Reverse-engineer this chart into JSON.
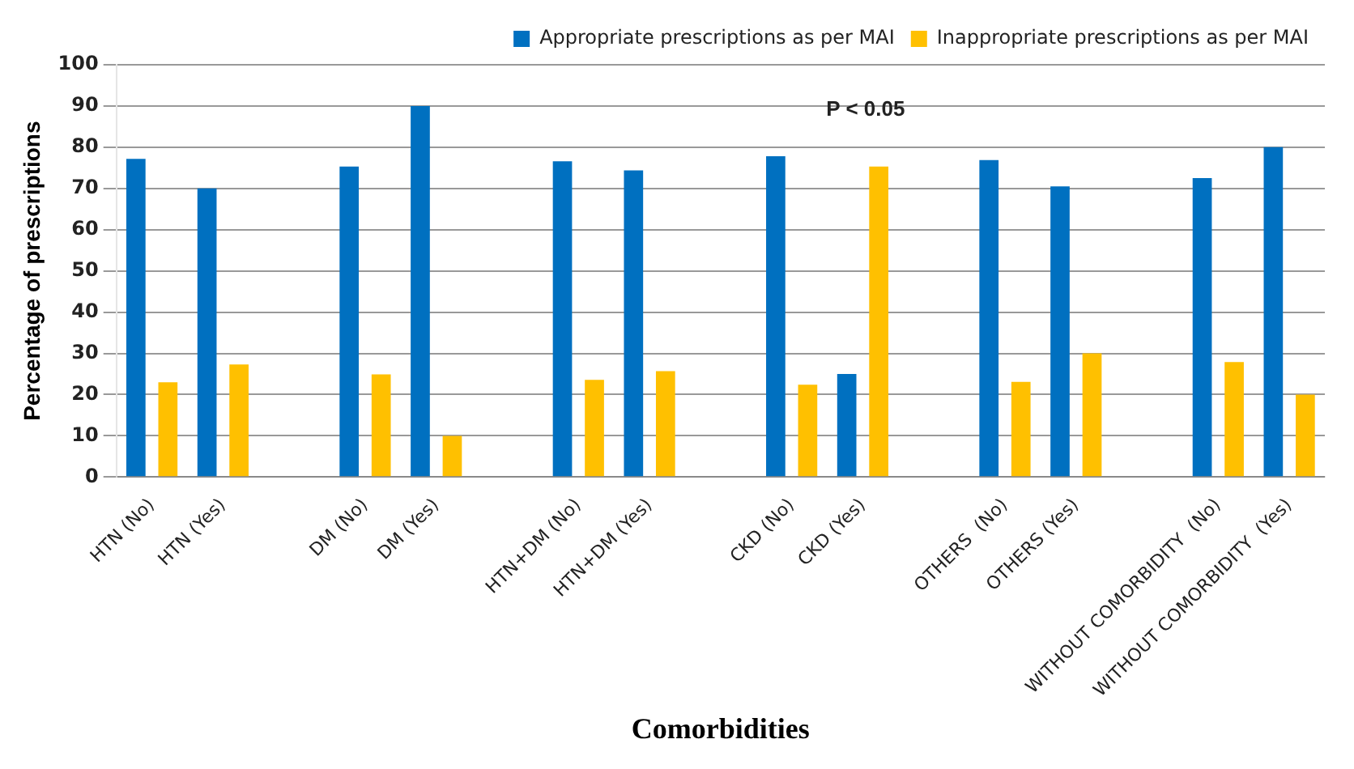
{
  "chart_data": {
    "type": "bar",
    "xlabel": "Comorbidities",
    "ylabel": "Percentage of prescriptions",
    "categories": [
      "HTN (No)",
      "HTN (Yes)",
      null,
      "DM (No)",
      "DM (Yes)",
      null,
      "HTN+DM (No)",
      "HTN+DM (Yes)",
      null,
      "CKD (No)",
      "CKD (Yes)",
      null,
      "OTHERS  (No)",
      "OTHERS (Yes)",
      null,
      "WITHOUT COMORBIDITY  (No)",
      "WITHOUT COMORBIDITY  (Yes)"
    ],
    "series": [
      {
        "name": "Appropriate prescriptions as per MAI",
        "color": "#0070c0",
        "values": [
          77.2,
          70,
          null,
          75.3,
          90,
          null,
          76.6,
          74.4,
          null,
          77.8,
          25,
          null,
          76.9,
          70.5,
          null,
          72.5,
          80
        ]
      },
      {
        "name": "Inappropriate prescriptions as per MAI",
        "color": "#ffc000",
        "values": [
          23,
          27.3,
          null,
          24.9,
          10,
          null,
          23.6,
          25.7,
          null,
          22.4,
          75.3,
          null,
          23.1,
          30,
          null,
          27.9,
          20
        ]
      }
    ],
    "ylim": [
      0,
      100
    ],
    "yticks": [
      0,
      10,
      20,
      30,
      40,
      50,
      60,
      70,
      80,
      90,
      100
    ],
    "grid": "y",
    "legend": "top",
    "annotations": [
      "P < 0.05"
    ]
  }
}
